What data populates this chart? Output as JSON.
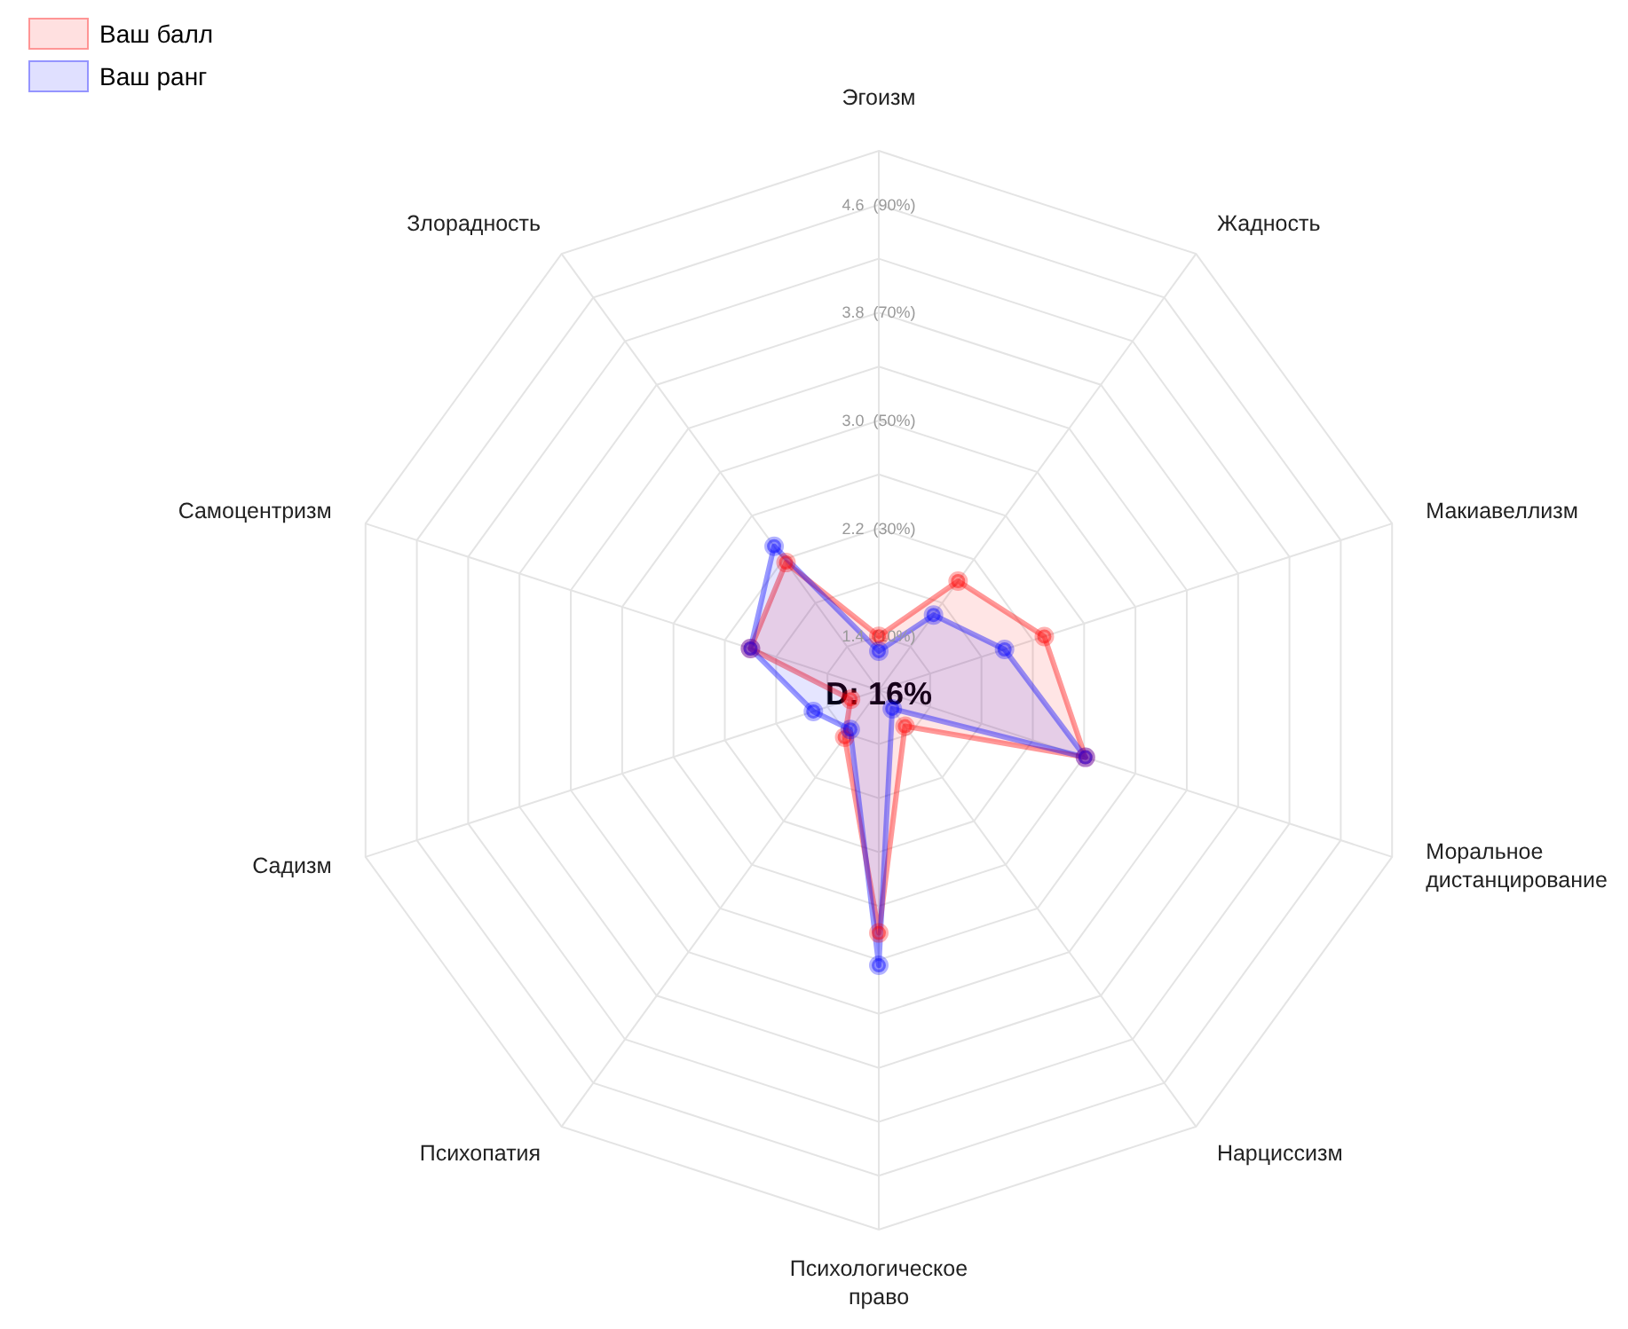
{
  "chart_data": {
    "type": "radar",
    "categories": [
      "Эгоизм",
      "Жадность",
      "Макиавеллизм",
      "Моральное дистанцирование",
      "Нарциссизм",
      "Психологическое право",
      "Психопатия",
      "Садизм",
      "Самоцентризм",
      "Злорадность"
    ],
    "series": [
      {
        "name": "Ваш балл",
        "color": "#ff0000",
        "values": [
          1.4,
          2.0,
          2.29,
          2.61,
          1.33,
          2.8,
          1.43,
          1.22,
          2.0,
          2.17
        ]
      },
      {
        "name": "Ваш ранг",
        "color": "#0000ff",
        "values": [
          1.29,
          1.69,
          1.98,
          2.61,
          1.17,
          3.04,
          1.36,
          1.51,
          2.0,
          2.32
        ]
      }
    ],
    "ylim": [
      1,
      5
    ],
    "yticks": [
      {
        "value": 1.4,
        "label": "1.4  (10%)"
      },
      {
        "value": 2.2,
        "label": "2.2  (30%)"
      },
      {
        "value": 3.0,
        "label": "3.0  (50%)"
      },
      {
        "value": 3.8,
        "label": "3.8  (70%)"
      },
      {
        "value": 4.6,
        "label": "4.6  (90%)"
      }
    ],
    "grid": true,
    "legend": "top left",
    "marker": "circle",
    "annotations": [
      "D: 16%"
    ]
  }
}
